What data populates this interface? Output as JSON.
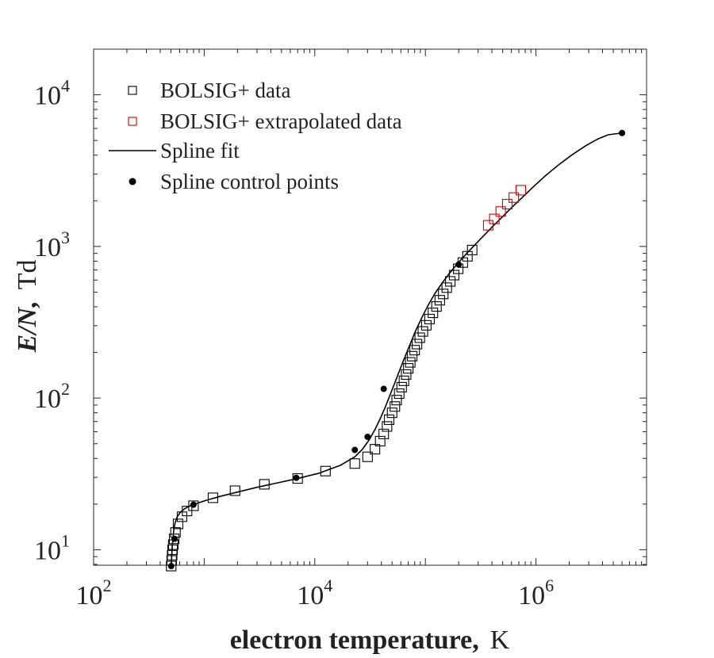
{
  "chart_data": {
    "type": "scatter",
    "xlabel": "electron temperature,",
    "xunit": "K",
    "ylabel": "E/N,",
    "yunit": "Td",
    "xscale": "log",
    "yscale": "log",
    "xlim": [
      100,
      10000000
    ],
    "ylim": [
      7.9,
      20000
    ],
    "grid": false,
    "legend_position": "top-left",
    "x_ticks": [
      {
        "base": "10",
        "exp": "2",
        "value": 100
      },
      {
        "base": "10",
        "exp": "4",
        "value": 10000
      },
      {
        "base": "10",
        "exp": "6",
        "value": 1000000
      }
    ],
    "y_ticks": [
      {
        "base": "10",
        "exp": "1",
        "value": 10
      },
      {
        "base": "10",
        "exp": "2",
        "value": 100
      },
      {
        "base": "10",
        "exp": "3",
        "value": 1000
      },
      {
        "base": "10",
        "exp": "4",
        "value": 10000
      }
    ],
    "legend": [
      {
        "label": "BOLSIG+ data",
        "marker": "square",
        "color": "#000000"
      },
      {
        "label": "BOLSIG+ extrapolated data",
        "marker": "square",
        "color": "#d40000"
      },
      {
        "label": "Spline fit",
        "marker": "line",
        "color": "#000000"
      },
      {
        "label": "Spline control points",
        "marker": "dot",
        "color": "#000000"
      }
    ],
    "series": [
      {
        "name": "BOLSIG+ data",
        "color": "#000000",
        "marker": "square",
        "x": [
          503,
          508,
          513,
          518,
          525,
          535,
          550,
          580,
          630,
          700,
          800,
          1200,
          1900,
          3500,
          7000,
          12500,
          23000,
          30000,
          35000,
          39000,
          42000,
          45000,
          47000,
          50000,
          53000,
          55000,
          58000,
          61000,
          64000,
          67000,
          70000,
          73000,
          76000,
          80000,
          84000,
          89000,
          95000,
          102000,
          109000,
          117000,
          126000,
          135000,
          145000,
          156000,
          168000,
          182000,
          198000,
          218000,
          240000,
          265000
        ],
        "y": [
          7.8,
          8.5,
          9.2,
          10.0,
          10.8,
          11.8,
          13.0,
          14.8,
          16.5,
          18.0,
          19.5,
          22.0,
          24.5,
          27.0,
          29.5,
          33.0,
          37.0,
          41.0,
          46.0,
          52.0,
          58.0,
          65.0,
          72.0,
          80.0,
          88.0,
          97.0,
          107.0,
          118.0,
          130.0,
          143.0,
          157.0,
          172.0,
          189.0,
          207.0,
          227.0,
          250.0,
          275.0,
          302.0,
          332.0,
          365.0,
          402.0,
          442.0,
          486.0,
          535.0,
          588.0,
          647.0,
          712.0,
          783.0,
          861.0,
          947.0
        ]
      },
      {
        "name": "BOLSIG+ extrapolated data",
        "color": "#d40000",
        "marker": "square",
        "x": [
          370000,
          420000,
          480000,
          550000,
          630000,
          730000
        ],
        "y": [
          1380,
          1520,
          1700,
          1900,
          2100,
          2350
        ]
      },
      {
        "name": "Spline fit",
        "color": "#000000",
        "marker": "line",
        "x": [
          503,
          506,
          510,
          515,
          522,
          530,
          545,
          570,
          610,
          670,
          750,
          870,
          1050,
          1400,
          2000,
          3000,
          4500,
          7000,
          11000,
          17000,
          23000,
          27000,
          31000,
          35000,
          39000,
          43000,
          47000,
          52000,
          58000,
          65000,
          73000,
          82000,
          93000,
          106000,
          122000,
          142000,
          165000,
          195000,
          230000,
          275000,
          330000,
          400000,
          490000,
          600000,
          750000,
          950000,
          1200000,
          1600000,
          2100000,
          2800000,
          3600000,
          4500000,
          6000000
        ],
        "y": [
          7.8,
          8.5,
          9.5,
          10.7,
          12.0,
          13.3,
          15.0,
          16.5,
          17.7,
          18.7,
          19.5,
          20.3,
          21.2,
          22.5,
          24.0,
          25.8,
          27.5,
          29.5,
          32.0,
          36.0,
          41.0,
          46.0,
          53.0,
          62.0,
          73.0,
          86.0,
          101.0,
          122.0,
          150.0,
          185.0,
          228.0,
          280.0,
          340.0,
          410.0,
          490.0,
          575.0,
          665.0,
          770.0,
          880.0,
          1010.0,
          1160.0,
          1340.0,
          1550.0,
          1800.0,
          2100.0,
          2480.0,
          2900.0,
          3450.0,
          4000.0,
          4600.0,
          5100.0,
          5450.0,
          5600.0
        ]
      },
      {
        "name": "Spline control points",
        "color": "#000000",
        "marker": "dot",
        "x": [
          503,
          540,
          800,
          6800,
          23000,
          30000,
          42000,
          200000,
          6000000
        ],
        "y": [
          7.8,
          11.8,
          19.8,
          29.8,
          45.5,
          55.5,
          115.0,
          760.0,
          5600.0
        ]
      }
    ]
  }
}
